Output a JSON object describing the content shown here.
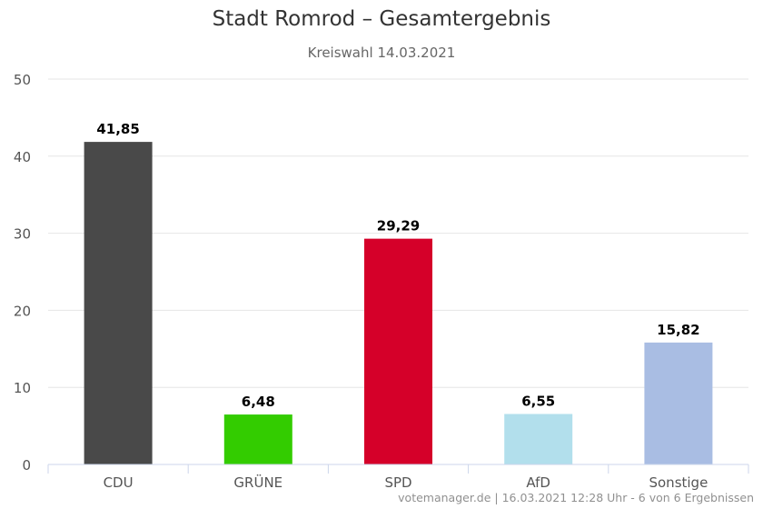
{
  "chart_data": {
    "type": "bar",
    "title": "Stadt Romrod – Gesamtergebnis",
    "subtitle": "Kreiswahl 14.03.2021",
    "categories": [
      "CDU",
      "GRÜNE",
      "SPD",
      "AfD",
      "Sonstige"
    ],
    "values": [
      41.85,
      6.48,
      29.29,
      6.55,
      15.82
    ],
    "value_labels": [
      "41,85",
      "6,48",
      "29,29",
      "6,55",
      "15,82"
    ],
    "colors": [
      "#494949",
      "#33cc00",
      "#d50029",
      "#b2dfec",
      "#a9bde3"
    ],
    "ylim": [
      0,
      50
    ],
    "yticks": [
      0,
      10,
      20,
      30,
      40,
      50
    ],
    "xlabel": "",
    "ylabel": "",
    "grid": true,
    "legend": "none"
  },
  "credit": "votemanager.de | 16.03.2021 12:28 Uhr - 6 von 6 Ergebnissen"
}
